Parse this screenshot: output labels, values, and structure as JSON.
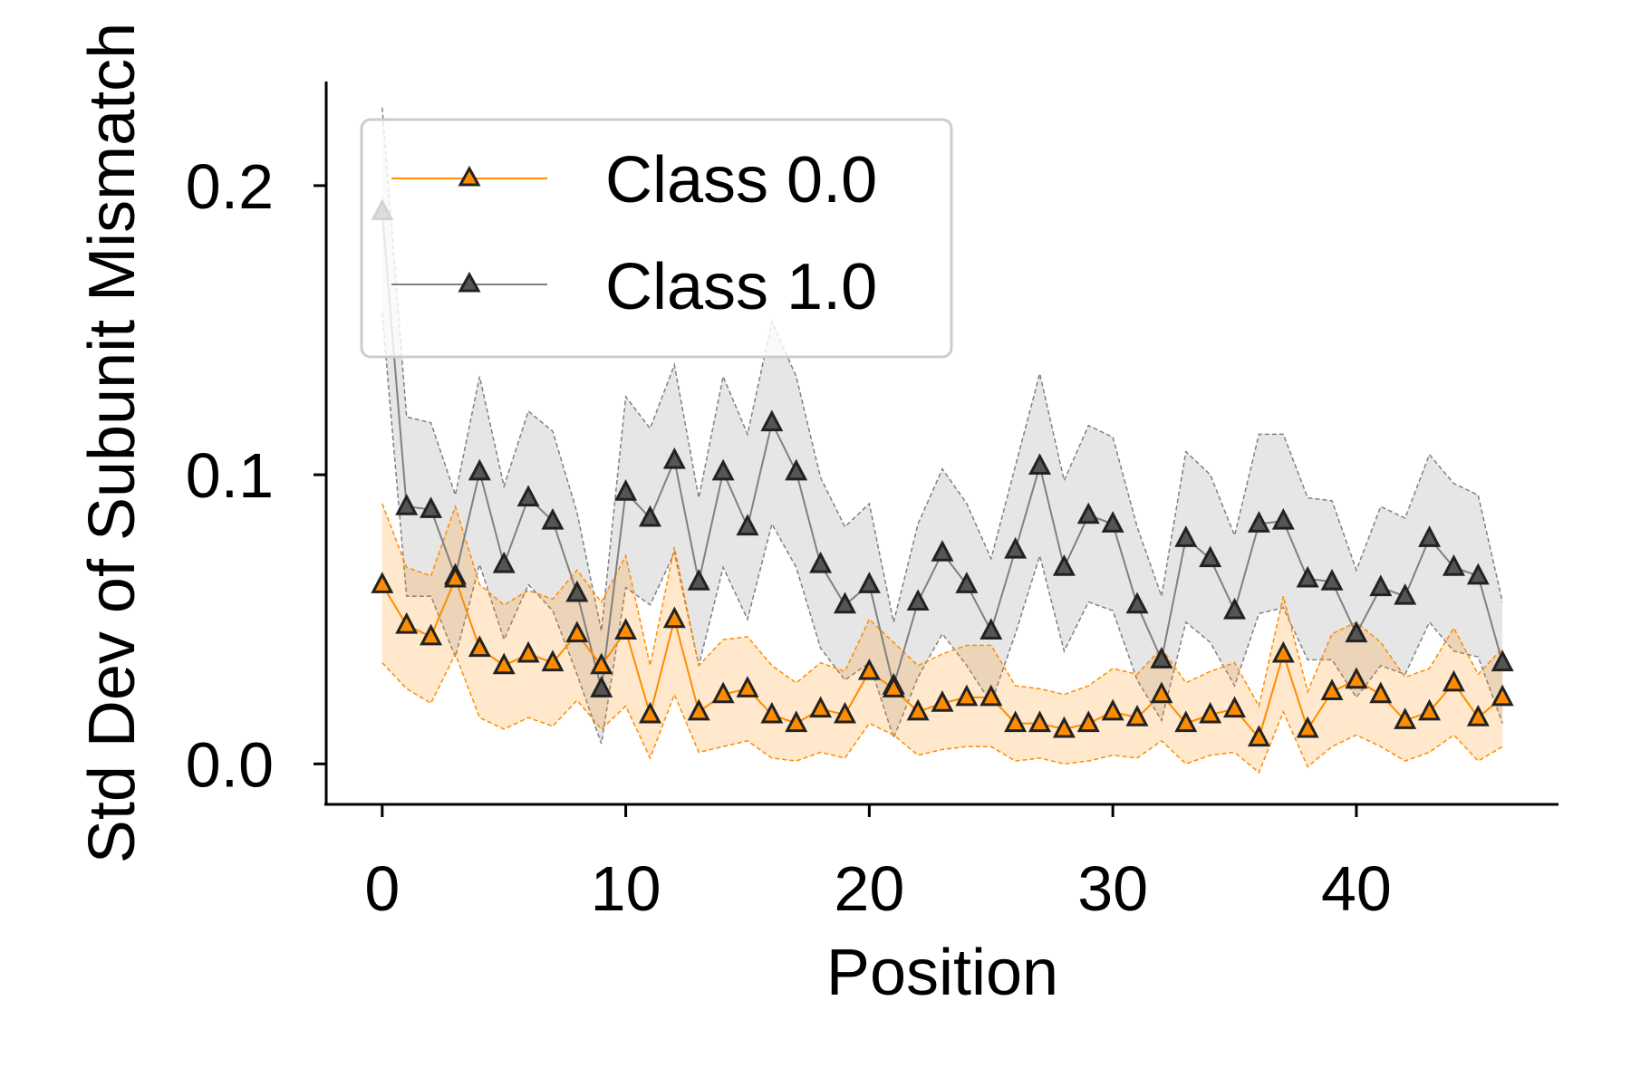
{
  "chart_data": {
    "type": "line",
    "title": "",
    "xlabel": "Position",
    "ylabel": "Std Dev of Subunit Mismatch",
    "xlim": [
      -2.3,
      48.3
    ],
    "ylim": [
      -0.014,
      0.236
    ],
    "x_ticks": [
      "0",
      "10",
      "20",
      "30",
      "40"
    ],
    "y_ticks": [
      "0.0",
      "0.1",
      "0.2"
    ],
    "grid": false,
    "legend_position": "top-left",
    "x": [
      0,
      1,
      2,
      3,
      4,
      5,
      6,
      7,
      8,
      9,
      10,
      11,
      12,
      13,
      14,
      15,
      16,
      17,
      18,
      19,
      20,
      21,
      22,
      23,
      24,
      25,
      26,
      27,
      28,
      29,
      30,
      31,
      32,
      33,
      34,
      35,
      36,
      37,
      38,
      39,
      40,
      41,
      42,
      43,
      44,
      45,
      46
    ],
    "series": [
      {
        "name": "Class 0.0",
        "color": "#ff8c00",
        "marker": "triangle-up",
        "values": [
          0.062,
          0.048,
          0.044,
          0.064,
          0.04,
          0.034,
          0.038,
          0.035,
          0.045,
          0.034,
          0.046,
          0.017,
          0.05,
          0.018,
          0.024,
          0.026,
          0.017,
          0.014,
          0.019,
          0.017,
          0.032,
          0.026,
          0.018,
          0.021,
          0.023,
          0.023,
          0.014,
          0.014,
          0.012,
          0.014,
          0.018,
          0.016,
          0.024,
          0.014,
          0.017,
          0.019,
          0.009,
          0.038,
          0.012,
          0.025,
          0.029,
          0.024,
          0.015,
          0.018,
          0.028,
          0.016,
          0.023
        ],
        "upper": [
          0.09,
          0.068,
          0.065,
          0.089,
          0.062,
          0.055,
          0.06,
          0.057,
          0.067,
          0.056,
          0.072,
          0.034,
          0.075,
          0.034,
          0.043,
          0.044,
          0.034,
          0.028,
          0.035,
          0.032,
          0.05,
          0.042,
          0.034,
          0.038,
          0.041,
          0.041,
          0.027,
          0.026,
          0.024,
          0.027,
          0.033,
          0.031,
          0.04,
          0.028,
          0.032,
          0.035,
          0.02,
          0.058,
          0.025,
          0.045,
          0.049,
          0.042,
          0.03,
          0.033,
          0.047,
          0.031,
          0.04
        ],
        "lower": [
          0.035,
          0.026,
          0.021,
          0.038,
          0.016,
          0.012,
          0.016,
          0.013,
          0.022,
          0.012,
          0.02,
          0.002,
          0.024,
          0.004,
          0.006,
          0.008,
          0.002,
          0.001,
          0.004,
          0.002,
          0.014,
          0.01,
          0.003,
          0.005,
          0.006,
          0.006,
          0.001,
          0.002,
          0.0,
          0.001,
          0.003,
          0.002,
          0.008,
          0.0,
          0.003,
          0.004,
          -0.003,
          0.018,
          -0.001,
          0.006,
          0.01,
          0.006,
          0.001,
          0.004,
          0.01,
          0.001,
          0.006
        ]
      },
      {
        "name": "Class 1.0",
        "color": "#808080",
        "marker": "triangle-up",
        "values": [
          0.191,
          0.089,
          0.088,
          0.065,
          0.101,
          0.069,
          0.092,
          0.084,
          0.059,
          0.026,
          0.094,
          0.085,
          0.105,
          0.063,
          0.101,
          0.082,
          0.118,
          0.101,
          0.069,
          0.055,
          0.062,
          0.027,
          0.056,
          0.073,
          0.062,
          0.046,
          0.074,
          0.103,
          0.068,
          0.086,
          0.083,
          0.055,
          0.036,
          0.078,
          0.071,
          0.053,
          0.083,
          0.084,
          0.064,
          0.063,
          0.045,
          0.061,
          0.058,
          0.078,
          0.068,
          0.065,
          0.035
        ],
        "upper": [
          0.227,
          0.12,
          0.118,
          0.093,
          0.134,
          0.096,
          0.122,
          0.115,
          0.087,
          0.046,
          0.127,
          0.116,
          0.138,
          0.092,
          0.134,
          0.114,
          0.153,
          0.134,
          0.099,
          0.082,
          0.09,
          0.049,
          0.083,
          0.102,
          0.09,
          0.071,
          0.103,
          0.135,
          0.098,
          0.117,
          0.113,
          0.082,
          0.058,
          0.108,
          0.1,
          0.079,
          0.114,
          0.114,
          0.092,
          0.091,
          0.067,
          0.089,
          0.085,
          0.107,
          0.097,
          0.093,
          0.056
        ],
        "lower": [
          0.156,
          0.058,
          0.058,
          0.037,
          0.069,
          0.043,
          0.062,
          0.053,
          0.031,
          0.007,
          0.061,
          0.055,
          0.073,
          0.034,
          0.068,
          0.05,
          0.083,
          0.068,
          0.04,
          0.029,
          0.035,
          0.009,
          0.03,
          0.045,
          0.034,
          0.021,
          0.045,
          0.072,
          0.039,
          0.056,
          0.053,
          0.029,
          0.015,
          0.049,
          0.042,
          0.027,
          0.052,
          0.054,
          0.036,
          0.036,
          0.023,
          0.034,
          0.031,
          0.049,
          0.039,
          0.037,
          0.014
        ]
      }
    ]
  }
}
